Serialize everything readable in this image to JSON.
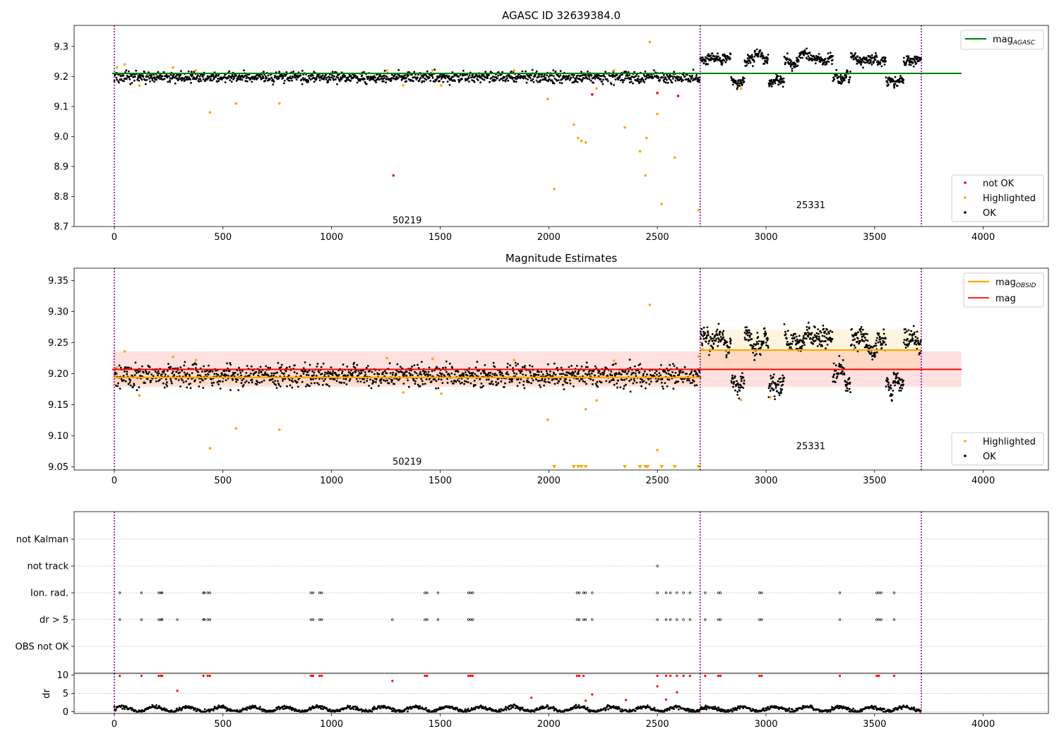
{
  "chart_data": [
    {
      "type": "scatter",
      "title": "AGASC ID 32639384.0",
      "xlim": [
        -185,
        4300
      ],
      "ylim": [
        8.7,
        9.37
      ],
      "xticks": [
        "0",
        "500",
        "1000",
        "1500",
        "2000",
        "2500",
        "3000",
        "3500",
        "4000"
      ],
      "yticks": [
        "8.7",
        "8.8",
        "8.9",
        "9.0",
        "9.1",
        "9.2",
        "9.3"
      ],
      "obsid_boundaries": [
        0,
        2697,
        3715
      ],
      "obsid_labels": [
        {
          "text": "50219",
          "x": 1348,
          "y": 8.72
        },
        {
          "text": "25331",
          "x": 3206,
          "y": 8.77
        }
      ],
      "lines": [
        {
          "name": "mag",
          "subscript": "AGASC",
          "y": 9.21,
          "x": [
            -10,
            3900
          ],
          "color": "#008000"
        }
      ],
      "series_segments": [
        {
          "name": "OK",
          "x": [
            0,
            2697
          ],
          "mean": 9.197,
          "spread": 0.022,
          "n": 1300
        },
        {
          "name": "OK",
          "x": [
            2697,
            3715
          ],
          "mean": 9.245,
          "spread": 0.04,
          "n": 700
        }
      ],
      "highlighted": [
        [
          12,
          9.23
        ],
        [
          48,
          9.24
        ],
        [
          115,
          9.17
        ],
        [
          270,
          9.23
        ],
        [
          375,
          9.22
        ],
        [
          440,
          9.08
        ],
        [
          560,
          9.11
        ],
        [
          760,
          9.11
        ],
        [
          1255,
          9.22
        ],
        [
          1330,
          9.17
        ],
        [
          1465,
          9.22
        ],
        [
          1505,
          9.17
        ],
        [
          1840,
          9.22
        ],
        [
          1995,
          9.125
        ],
        [
          2025,
          8.825
        ],
        [
          2115,
          9.04
        ],
        [
          2135,
          8.995
        ],
        [
          2150,
          8.985
        ],
        [
          2170,
          8.98
        ],
        [
          2220,
          9.16
        ],
        [
          2300,
          9.22
        ],
        [
          2350,
          9.03
        ],
        [
          2420,
          8.95
        ],
        [
          2445,
          8.87
        ],
        [
          2450,
          8.995
        ],
        [
          2465,
          9.315
        ],
        [
          2500,
          9.075
        ],
        [
          2520,
          8.775
        ],
        [
          2580,
          8.93
        ],
        [
          2690,
          8.755
        ],
        [
          2885,
          9.16
        ]
      ],
      "not_ok": [
        [
          1285,
          8.87
        ],
        [
          2200,
          9.14
        ],
        [
          2500,
          9.145
        ],
        [
          2595,
          9.135
        ]
      ],
      "legends": [
        {
          "entries": [
            {
              "label": "mag",
              "sub": "AGASC"
            }
          ]
        },
        {
          "entries": [
            {
              "label": "not OK"
            },
            {
              "label": "Highlighted"
            },
            {
              "label": "OK"
            }
          ]
        }
      ]
    },
    {
      "type": "scatter",
      "title": "Magnitude Estimates",
      "xlim": [
        -185,
        4300
      ],
      "ylim": [
        9.045,
        9.37
      ],
      "xticks": [
        "0",
        "500",
        "1000",
        "1500",
        "2000",
        "2500",
        "3000",
        "3500",
        "4000"
      ],
      "yticks": [
        "9.05",
        "9.10",
        "9.15",
        "9.20",
        "9.25",
        "9.30",
        "9.35"
      ],
      "obsid_labels": [
        {
          "text": "50219",
          "x": 1348,
          "y": 9.058
        },
        {
          "text": "25331",
          "x": 3206,
          "y": 9.083
        }
      ],
      "lines": [
        {
          "name": "mag",
          "subscript": "OBSID",
          "segments": [
            {
              "x": [
                0,
                2697
              ],
              "y": 9.194
            },
            {
              "x": [
                2697,
                3715
              ],
              "y": 9.238
            }
          ],
          "color": "#ffa500"
        },
        {
          "name": "mag",
          "y": 9.207,
          "x": [
            -10,
            3900
          ],
          "color": "#ff0000",
          "band": [
            9.179,
            9.236
          ]
        }
      ],
      "obsid_bands": [
        {
          "x": [
            0,
            2697
          ],
          "y": [
            9.183,
            9.205
          ]
        },
        {
          "x": [
            2697,
            3715
          ],
          "y": [
            9.205,
            9.271
          ]
        }
      ],
      "highlighted": [
        [
          12,
          9.21
        ],
        [
          48,
          9.236
        ],
        [
          115,
          9.165
        ],
        [
          270,
          9.227
        ],
        [
          375,
          9.222
        ],
        [
          440,
          9.08
        ],
        [
          560,
          9.112
        ],
        [
          760,
          9.11
        ],
        [
          1255,
          9.225
        ],
        [
          1330,
          9.17
        ],
        [
          1465,
          9.224
        ],
        [
          1505,
          9.168
        ],
        [
          1840,
          9.222
        ],
        [
          1995,
          9.126
        ],
        [
          2170,
          9.143
        ],
        [
          2220,
          9.157
        ],
        [
          2300,
          9.221
        ],
        [
          2465,
          9.311
        ],
        [
          2500,
          9.077
        ],
        [
          2690,
          9.228
        ],
        [
          2885,
          9.158
        ],
        [
          3020,
          9.162
        ]
      ],
      "below_range_markers": [
        2025,
        2115,
        2135,
        2150,
        2170,
        2350,
        2420,
        2445,
        2455,
        2520,
        2580,
        2690
      ],
      "legends": [
        {
          "entries": [
            {
              "label": "mag",
              "sub": "OBSID"
            },
            {
              "label": "mag"
            }
          ]
        },
        {
          "entries": [
            {
              "label": "Highlighted"
            },
            {
              "label": "OK"
            }
          ]
        }
      ]
    },
    {
      "type": "scatter",
      "title": "",
      "xlim": [
        -185,
        4300
      ],
      "categories": [
        "not Kalman",
        "not track",
        "Ion. rad.",
        "dr > 5",
        "OBS not OK"
      ],
      "flag_points": {
        "not track": [
          2500
        ],
        "Ion. rad.": [
          25,
          125,
          205,
          215,
          220,
          410,
          415,
          430,
          440,
          905,
          915,
          945,
          955,
          1430,
          1440,
          1490,
          1630,
          1640,
          1650,
          2130,
          2140,
          2160,
          2170,
          2200,
          2500,
          2540,
          2560,
          2590,
          2620,
          2650,
          2720,
          2780,
          2790,
          2970,
          2980,
          3340,
          3510,
          3520,
          3530,
          3590
        ],
        "dr > 5": [
          25,
          125,
          205,
          215,
          220,
          290,
          410,
          415,
          430,
          440,
          905,
          915,
          945,
          955,
          1280,
          1430,
          1440,
          1490,
          1630,
          1640,
          1650,
          2130,
          2140,
          2160,
          2170,
          2200,
          2500,
          2540,
          2560,
          2590,
          2620,
          2650,
          2720,
          2780,
          2790,
          2970,
          2980,
          3340,
          3510,
          3520,
          3530,
          3590
        ]
      }
    },
    {
      "type": "scatter",
      "title": "",
      "xlim": [
        -185,
        4300
      ],
      "ylim": [
        -0.5,
        10.5
      ],
      "ylabel": "dr",
      "xticks": [
        "0",
        "500",
        "1000",
        "1500",
        "2000",
        "2500",
        "3000",
        "3500",
        "4000"
      ],
      "yticks": [
        "0",
        "5",
        "10"
      ],
      "dr_high": [
        [
          25,
          9.8
        ],
        [
          125,
          9.8
        ],
        [
          205,
          9.8
        ],
        [
          215,
          9.8
        ],
        [
          220,
          9.8
        ],
        [
          290,
          5.7
        ],
        [
          410,
          9.8
        ],
        [
          430,
          9.8
        ],
        [
          440,
          9.8
        ],
        [
          905,
          9.8
        ],
        [
          915,
          9.8
        ],
        [
          945,
          9.8
        ],
        [
          955,
          9.8
        ],
        [
          1280,
          8.4
        ],
        [
          1430,
          9.8
        ],
        [
          1440,
          9.8
        ],
        [
          1630,
          9.8
        ],
        [
          1640,
          9.8
        ],
        [
          1650,
          9.8
        ],
        [
          1920,
          3.8
        ],
        [
          2130,
          9.8
        ],
        [
          2140,
          9.8
        ],
        [
          2160,
          9.8
        ],
        [
          2170,
          3.0
        ],
        [
          2200,
          4.7
        ],
        [
          2355,
          3.2
        ],
        [
          2500,
          9.8
        ],
        [
          2500,
          6.9
        ],
        [
          2540,
          9.8
        ],
        [
          2540,
          3.3
        ],
        [
          2560,
          9.8
        ],
        [
          2590,
          9.8
        ],
        [
          2590,
          5.3
        ],
        [
          2620,
          9.8
        ],
        [
          2650,
          9.8
        ],
        [
          2720,
          9.8
        ],
        [
          2780,
          9.8
        ],
        [
          2790,
          9.8
        ],
        [
          2970,
          9.8
        ],
        [
          2980,
          9.8
        ],
        [
          3340,
          9.8
        ],
        [
          3510,
          9.8
        ],
        [
          3520,
          9.8
        ],
        [
          3590,
          9.8
        ]
      ],
      "dr_ok": {
        "x": [
          0,
          3715
        ],
        "typical": 0.7,
        "range": [
          0,
          2.3
        ]
      }
    }
  ]
}
